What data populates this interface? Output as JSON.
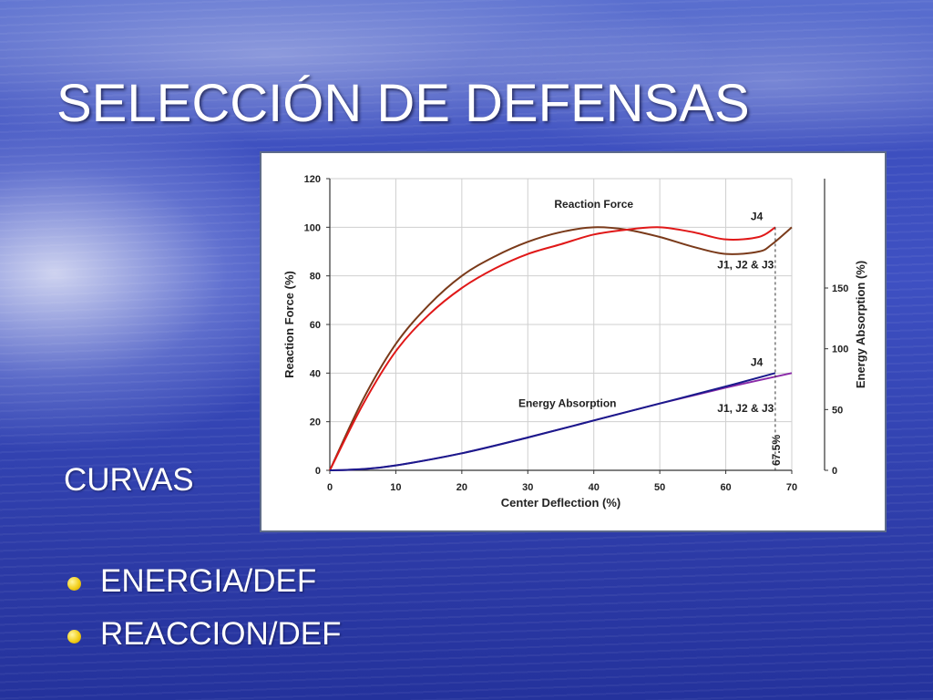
{
  "slide": {
    "title": "SELECCIÓN DE DEFENSAS",
    "subtitle": "CURVAS",
    "bullets": [
      "ENERGIA/DEF",
      "REACCION/DEF"
    ]
  },
  "chart_data": {
    "type": "line",
    "xlabel": "Center Deflection (%)",
    "ylabel": "Reaction Force (%)",
    "y2label": "Energy Absorption (%)",
    "xlim": [
      0,
      70
    ],
    "ylim": [
      0,
      120
    ],
    "y2lim": [
      0,
      240
    ],
    "xticks": [
      0,
      10,
      20,
      30,
      40,
      50,
      60,
      70
    ],
    "yticks": [
      0,
      20,
      40,
      60,
      80,
      100,
      120
    ],
    "y2ticks": [
      0,
      50,
      100,
      150
    ],
    "grid": true,
    "series": [
      {
        "name": "J1, J2 & J3",
        "group": "Reaction Force",
        "axis": "left",
        "color": "#7a3a1a",
        "x": [
          0,
          5,
          10,
          15,
          20,
          25,
          30,
          35,
          40,
          45,
          50,
          55,
          60,
          65,
          67,
          70
        ],
        "y": [
          0,
          29,
          52,
          68,
          80,
          88,
          94,
          98,
          100,
          99,
          96,
          92,
          89,
          90,
          93,
          100
        ]
      },
      {
        "name": "J4",
        "group": "Reaction Force",
        "axis": "left",
        "color": "#e01818",
        "x": [
          0,
          5,
          10,
          15,
          20,
          25,
          30,
          35,
          40,
          45,
          50,
          55,
          60,
          65,
          67.5
        ],
        "y": [
          0,
          27,
          49,
          64,
          75,
          83,
          89,
          93,
          97,
          99,
          100,
          98,
          95,
          96,
          100
        ]
      },
      {
        "name": "J1, J2 & J3",
        "group": "Energy Absorption",
        "axis": "right",
        "color": "#8a2aa8",
        "x": [
          0,
          5,
          10,
          20,
          30,
          40,
          50,
          60,
          70
        ],
        "y": [
          0,
          1,
          4,
          14,
          27,
          41,
          55,
          68,
          80
        ]
      },
      {
        "name": "J4",
        "group": "Energy Absorption",
        "axis": "right",
        "color": "#1a1a8c",
        "x": [
          0,
          5,
          10,
          20,
          30,
          40,
          50,
          60,
          67.5
        ],
        "y": [
          0,
          1,
          4,
          14,
          27,
          41,
          55,
          69,
          80
        ]
      }
    ],
    "annotations": [
      {
        "text": "Reaction Force",
        "x": 40,
        "y": 108
      },
      {
        "text": "J4",
        "x": 64.7,
        "y": 103
      },
      {
        "text": "J1, J2 & J3",
        "x": 63,
        "y": 83
      },
      {
        "text": "J4",
        "x": 64.7,
        "y": 43
      },
      {
        "text": "Energy Absorption",
        "x": 36,
        "y": 26
      },
      {
        "text": "J1, J2 & J3",
        "x": 63,
        "y": 24
      }
    ],
    "vline": {
      "x": 67.5,
      "label": "67.5%",
      "style": "dashed"
    }
  }
}
